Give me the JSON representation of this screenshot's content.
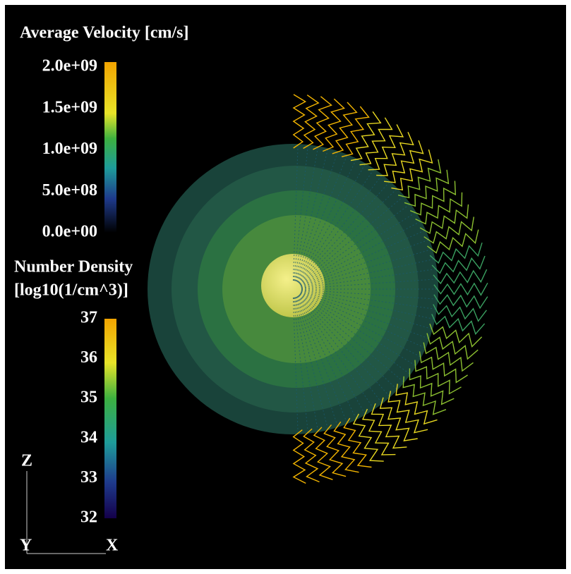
{
  "legends": [
    {
      "title": "Average Velocity [cm/s]",
      "ticks": [
        "2.0e+09",
        "1.5e+09",
        "1.0e+09",
        "5.0e+08",
        "0.0e+00"
      ]
    },
    {
      "title": [
        "Number Density",
        "[log10(1/cm^3)]"
      ],
      "ticks": [
        "37",
        "36",
        "35",
        "34",
        "33",
        "32"
      ]
    }
  ],
  "axes": {
    "z": "Z",
    "y": "Y",
    "x": "X"
  }
}
